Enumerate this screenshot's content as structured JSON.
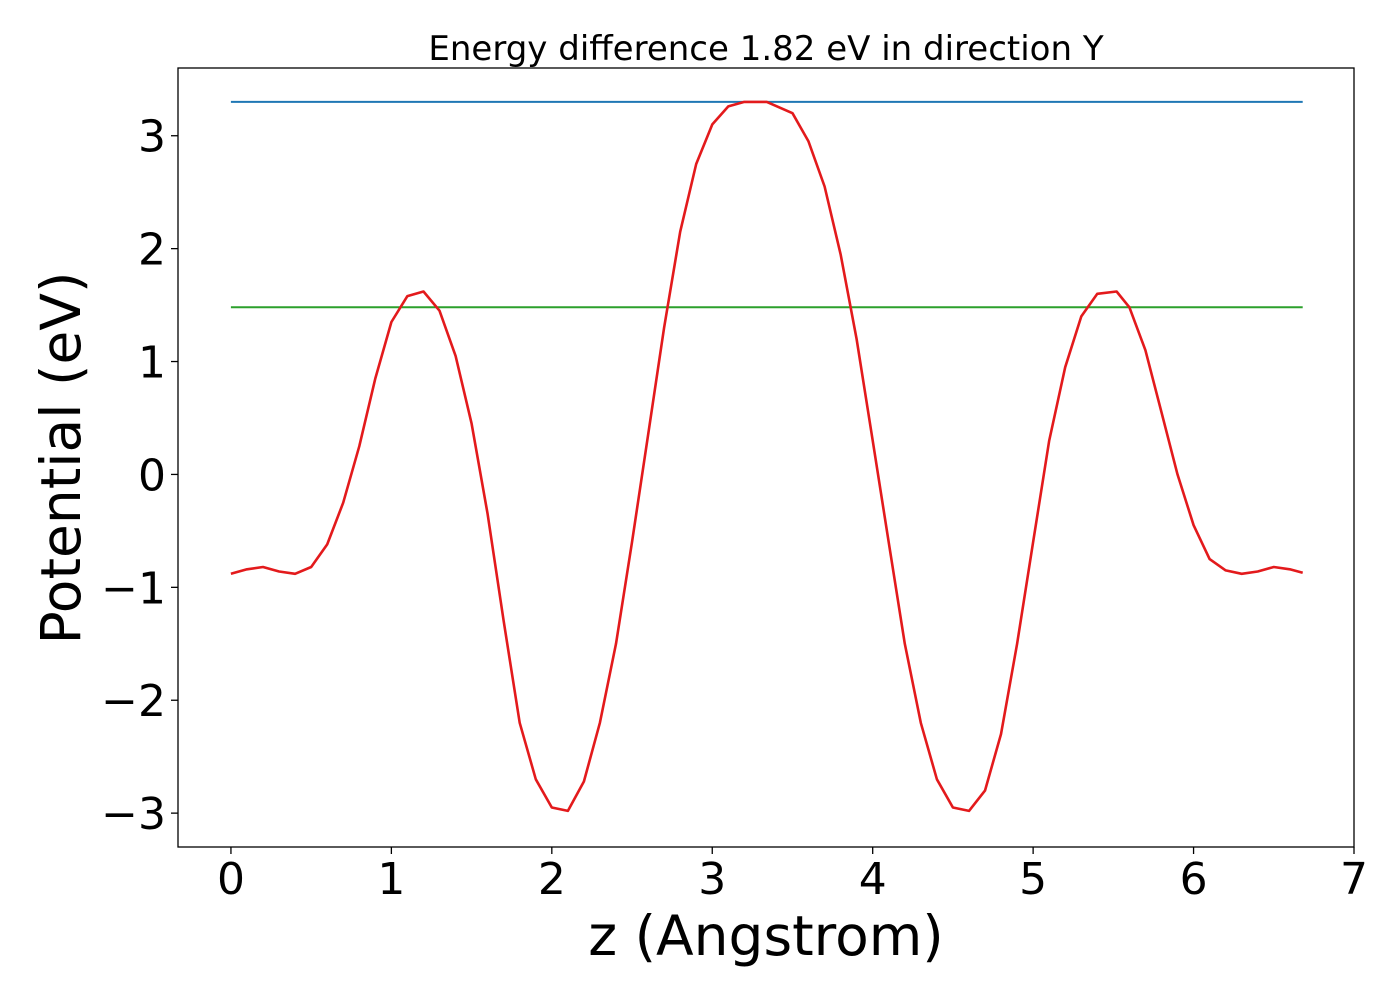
{
  "chart_data": {
    "type": "line",
    "title": "Energy difference 1.82 eV in direction Y",
    "xlabel": "z (Angstrom)",
    "ylabel": "Potential (eV)",
    "xlim": [
      -0.33,
      7.0
    ],
    "ylim": [
      -3.3,
      3.6
    ],
    "xticks": [
      0,
      1,
      2,
      3,
      4,
      5,
      6,
      7
    ],
    "xtick_labels": [
      "0",
      "1",
      "2",
      "3",
      "4",
      "5",
      "6",
      "7"
    ],
    "yticks": [
      3,
      2,
      1,
      0,
      -1,
      -2,
      -3
    ],
    "ytick_labels": [
      "3",
      "2",
      "1",
      "0",
      "−1",
      "−2",
      "−3"
    ],
    "grid": false,
    "series": [
      {
        "color": "#1f77b4",
        "x": [
          0,
          6.68
        ],
        "y": [
          3.3,
          3.3
        ]
      },
      {
        "color": "#2ca02c",
        "x": [
          0,
          6.68
        ],
        "y": [
          1.48,
          1.48
        ]
      },
      {
        "color": "#e31a1c",
        "x": [
          0,
          0.1,
          0.2,
          0.3,
          0.4,
          0.5,
          0.6,
          0.7,
          0.8,
          0.9,
          1.0,
          1.1,
          1.2,
          1.3,
          1.4,
          1.5,
          1.6,
          1.7,
          1.8,
          1.9,
          2.0,
          2.1,
          2.2,
          2.3,
          2.4,
          2.5,
          2.6,
          2.7,
          2.8,
          2.9,
          3.0,
          3.1,
          3.2,
          3.34,
          3.5,
          3.6,
          3.7,
          3.8,
          3.9,
          4.0,
          4.1,
          4.2,
          4.3,
          4.4,
          4.5,
          4.6,
          4.7,
          4.8,
          4.9,
          5.0,
          5.1,
          5.2,
          5.3,
          5.4,
          5.52,
          5.6,
          5.7,
          5.8,
          5.9,
          6.0,
          6.1,
          6.2,
          6.3,
          6.4,
          6.5,
          6.6,
          6.68
        ],
        "y": [
          -0.88,
          -0.84,
          -0.82,
          -0.86,
          -0.88,
          -0.82,
          -0.62,
          -0.25,
          0.25,
          0.85,
          1.35,
          1.58,
          1.62,
          1.45,
          1.05,
          0.45,
          -0.35,
          -1.3,
          -2.2,
          -2.7,
          -2.95,
          -2.98,
          -2.72,
          -2.2,
          -1.5,
          -0.6,
          0.35,
          1.3,
          2.15,
          2.75,
          3.1,
          3.26,
          3.3,
          3.3,
          3.2,
          2.95,
          2.55,
          1.95,
          1.2,
          0.3,
          -0.6,
          -1.5,
          -2.2,
          -2.7,
          -2.95,
          -2.98,
          -2.8,
          -2.3,
          -1.5,
          -0.6,
          0.3,
          0.95,
          1.4,
          1.6,
          1.62,
          1.48,
          1.1,
          0.55,
          0.0,
          -0.45,
          -0.75,
          -0.85,
          -0.88,
          -0.86,
          -0.82,
          -0.84,
          -0.87
        ]
      }
    ]
  }
}
